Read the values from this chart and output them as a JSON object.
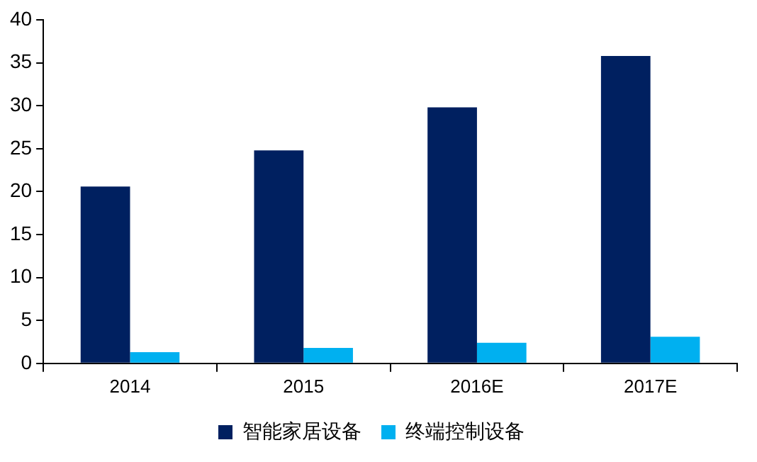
{
  "chart_data": {
    "type": "bar",
    "categories": [
      "2014",
      "2015",
      "2016E",
      "2017E"
    ],
    "series": [
      {
        "name": "智能家居设备",
        "color": "#002060",
        "values": [
          20.6,
          24.8,
          29.8,
          35.8
        ]
      },
      {
        "name": "终端控制设备",
        "color": "#00b0f0",
        "values": [
          1.3,
          1.8,
          2.4,
          3.1
        ]
      }
    ],
    "ylim": [
      0,
      40
    ],
    "yticks": [
      0,
      5,
      10,
      15,
      20,
      25,
      30,
      35,
      40
    ],
    "grid": false,
    "legend": "bottom"
  }
}
